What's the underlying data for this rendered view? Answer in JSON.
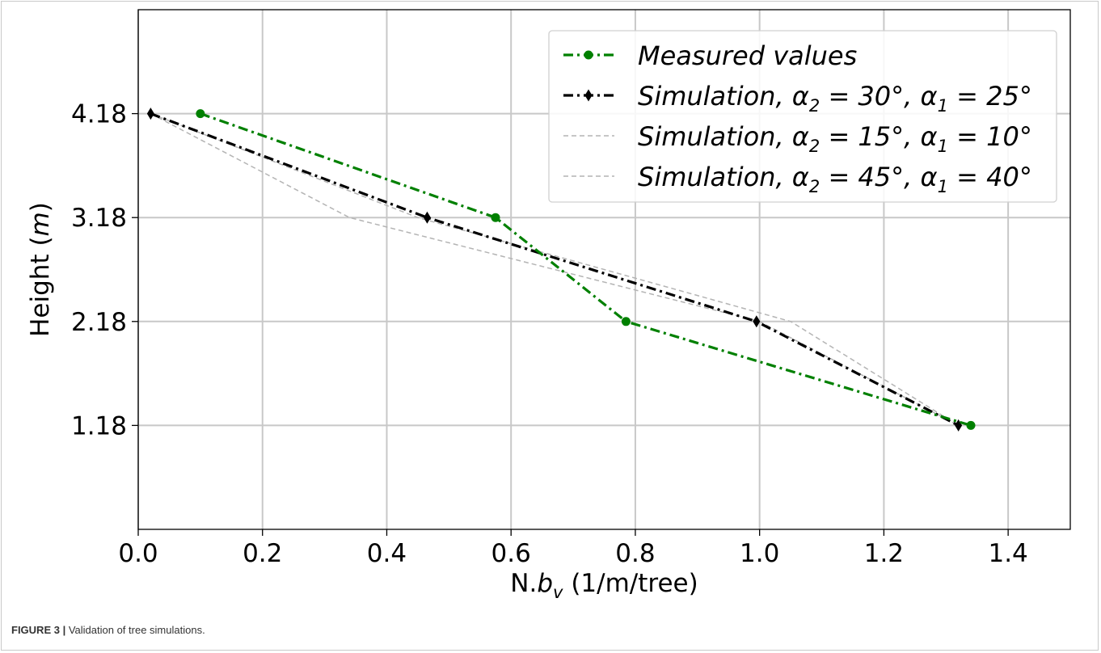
{
  "caption": {
    "label": "FIGURE 3 |",
    "text": "Validation of tree simulations."
  },
  "colors": {
    "measured": "#008000",
    "main_sim": "#000000",
    "alt_sim": "#b4b4b4",
    "grid": "#c8c8c8"
  },
  "chart_data": {
    "type": "line",
    "title": "",
    "xlabel": "N.b_v (1/m/tree)",
    "ylabel": "Height (m)",
    "xlim": [
      0.0,
      1.5
    ],
    "ylim": [
      0.18,
      5.18
    ],
    "x_ticks": [
      0.0,
      0.2,
      0.4,
      0.6,
      0.8,
      1.0,
      1.2,
      1.4
    ],
    "x_tick_labels": [
      "0.0",
      "0.2",
      "0.4",
      "0.6",
      "0.8",
      "1.0",
      "1.2",
      "1.4"
    ],
    "y_ticks": [
      1.18,
      2.18,
      3.18,
      4.18
    ],
    "y_tick_labels": [
      "1.18",
      "2.18",
      "3.18",
      "4.18"
    ],
    "grid": true,
    "legend_position": "top-right",
    "series": [
      {
        "name": "Measured values",
        "color": "#008000",
        "linestyle": "dashdot",
        "marker": "circle",
        "x": [
          0.1,
          0.575,
          0.785,
          1.34
        ],
        "y": [
          4.18,
          3.18,
          2.18,
          1.18
        ]
      },
      {
        "name": "Simulation, α2 = 30°, α1 = 25°",
        "color": "#000000",
        "linestyle": "dashdot",
        "marker": "diamond",
        "x": [
          0.02,
          0.465,
          0.995,
          1.32
        ],
        "y": [
          4.18,
          3.18,
          2.18,
          1.18
        ]
      },
      {
        "name": "Simulation, α2 = 15°, α1 = 10°",
        "color": "#b4b4b4",
        "linestyle": "dashed",
        "marker": "none",
        "x": [
          0.02,
          0.45,
          1.05,
          1.32
        ],
        "y": [
          4.18,
          3.18,
          2.18,
          1.18
        ]
      },
      {
        "name": "Simulation, α2 = 45°, α1 = 40°",
        "color": "#b4b4b4",
        "linestyle": "dashed",
        "marker": "none",
        "x": [
          0.02,
          0.34,
          1.0,
          1.32
        ],
        "y": [
          4.18,
          3.18,
          2.18,
          1.18
        ]
      }
    ]
  }
}
